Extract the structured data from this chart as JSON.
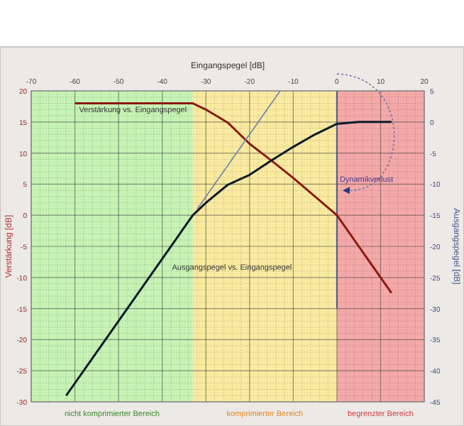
{
  "chart_data": {
    "type": "line",
    "xlabel": "Eingangspegel [dB]",
    "ylabel": "Verstärkung [dB]",
    "y2label": "Ausgangspegel [dB]",
    "xlim": [
      -70,
      20
    ],
    "xticks": [
      -70,
      -60,
      -50,
      -40,
      -30,
      -20,
      -10,
      0,
      10,
      20
    ],
    "ylim": [
      -30,
      20
    ],
    "yticks": [
      -30,
      -25,
      -20,
      -15,
      -10,
      -5,
      0,
      5,
      10,
      15,
      20
    ],
    "y2lim": [
      -45,
      5
    ],
    "y2ticks": [
      -45,
      -40,
      -35,
      -30,
      -25,
      -20,
      -15,
      -10,
      -5,
      0,
      5
    ],
    "grid": true,
    "line_style": "solid",
    "series": [
      {
        "name": "Verstärkung vs. Eingangspegel",
        "color": "#8b1a10",
        "x": [
          -60,
          -33,
          -30,
          -25,
          -20,
          -15,
          -10,
          -5,
          0,
          5,
          12.5
        ],
        "values": [
          18,
          18,
          17,
          14.9,
          11.5,
          8.8,
          6,
          3,
          0,
          -5,
          -12.5
        ]
      },
      {
        "name": "Ausgangspegel vs. Eingangspegel",
        "color": "#0d1b2a",
        "axis": "y2",
        "x": [
          -62,
          -33,
          -30,
          -25,
          -20,
          -15,
          -10,
          -5,
          0,
          5,
          12.5
        ],
        "values": [
          -44,
          -15,
          -13,
          -10.1,
          -8.5,
          -6.2,
          -4,
          -2,
          -0.3,
          0,
          0
        ]
      },
      {
        "color": "#6d82b0",
        "axis": "y2",
        "x": [
          -32,
          -13
        ],
        "values": [
          -14,
          5
        ]
      }
    ],
    "bands": [
      {
        "axis": "x",
        "from": -70,
        "to": -33,
        "label": "nicht komprimierter Bereich",
        "color": "#c6f2b4"
      },
      {
        "axis": "x",
        "from": -33,
        "to": 0,
        "label": "komprimierter Bereich",
        "color": "#f9eaa0"
      },
      {
        "axis": "x",
        "from": 0,
        "to": 20,
        "label": "begrenzter Bereich",
        "color": "#f4a9a9"
      }
    ],
    "ref_lines": [
      {
        "axis": "x",
        "value": 0,
        "color": "#4a5a8a"
      }
    ],
    "annotations": [
      "Dynamikverlust"
    ]
  }
}
